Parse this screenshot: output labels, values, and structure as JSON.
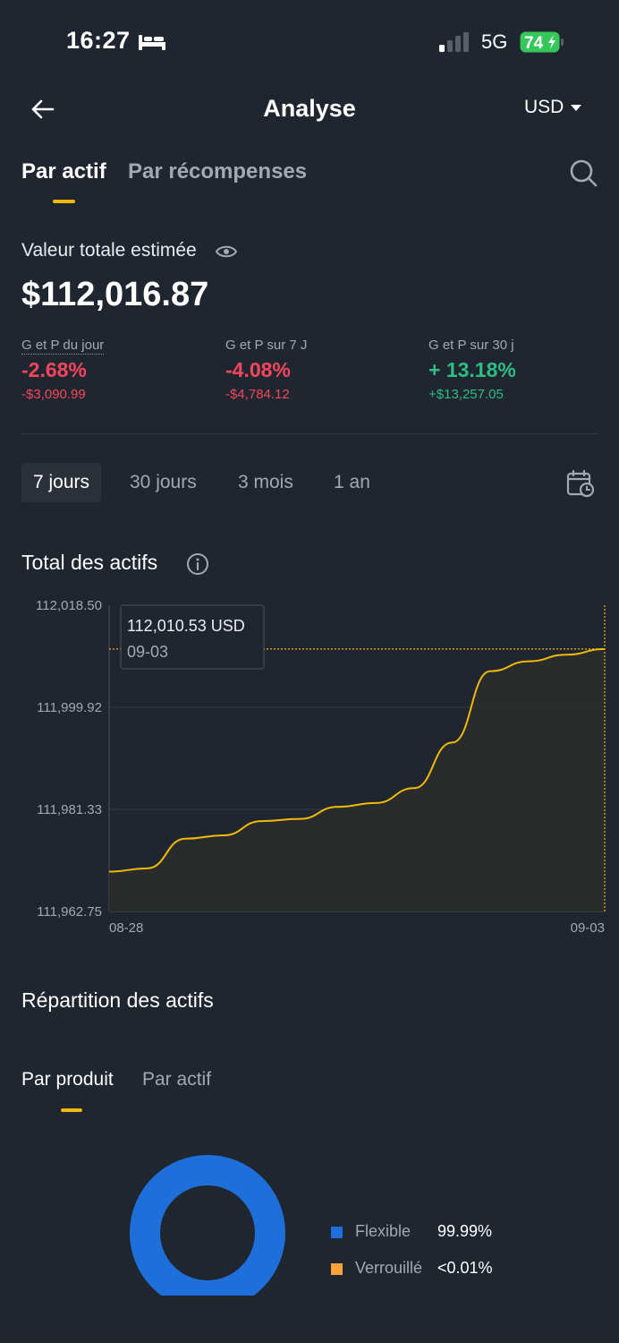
{
  "status_bar": {
    "time": "16:27",
    "network": "5G",
    "battery": "74"
  },
  "header": {
    "title": "Analyse",
    "currency": "USD"
  },
  "tabs": [
    "Par actif",
    "Par récompenses"
  ],
  "summary": {
    "label": "Valeur totale estimée",
    "amount": "$112,016.87",
    "pnl": [
      {
        "label": "G et P du jour",
        "pct": "-2.68%",
        "abs": "-$3,090.99",
        "trend": "down"
      },
      {
        "label": "G et P sur 7 J",
        "pct": "-4.08%",
        "abs": "-$4,784.12",
        "trend": "down"
      },
      {
        "label": "G et P sur 30 j",
        "pct": "+ 13.18%",
        "abs": "+$13,257.05",
        "trend": "up"
      }
    ]
  },
  "periods": [
    "7 jours",
    "30 jours",
    "3 mois",
    "1 an"
  ],
  "active_period": "7 jours",
  "chart_title": "Total des actifs",
  "chart_data": {
    "type": "area",
    "y_ticks": [
      "112,018.50",
      "111,999.92",
      "111,981.33",
      "111,962.75"
    ],
    "x_ticks": [
      "08-28",
      "09-03"
    ],
    "ylim": [
      111962.75,
      112018.5
    ],
    "series": [
      {
        "values": [
          111970.0,
          111970.6,
          111976.0,
          111976.6,
          111979.2,
          111979.6,
          111981.8,
          111982.5,
          111985.2,
          111993.5,
          112006.5,
          112008.3,
          112009.5,
          112010.53
        ]
      }
    ],
    "tooltip": {
      "value": "112,010.53 USD",
      "date": "09-03"
    },
    "line_color": "#f0b90b",
    "grid": true
  },
  "allocation": {
    "title": "Répartition des actifs",
    "subtabs": [
      "Par produit",
      "Par actif"
    ],
    "items": [
      {
        "name": "Flexible",
        "value": "99.99%",
        "color": "#1e6fd9"
      },
      {
        "name": "Verrouillé",
        "value": "<0.01%",
        "color": "#f7a23b"
      }
    ]
  }
}
